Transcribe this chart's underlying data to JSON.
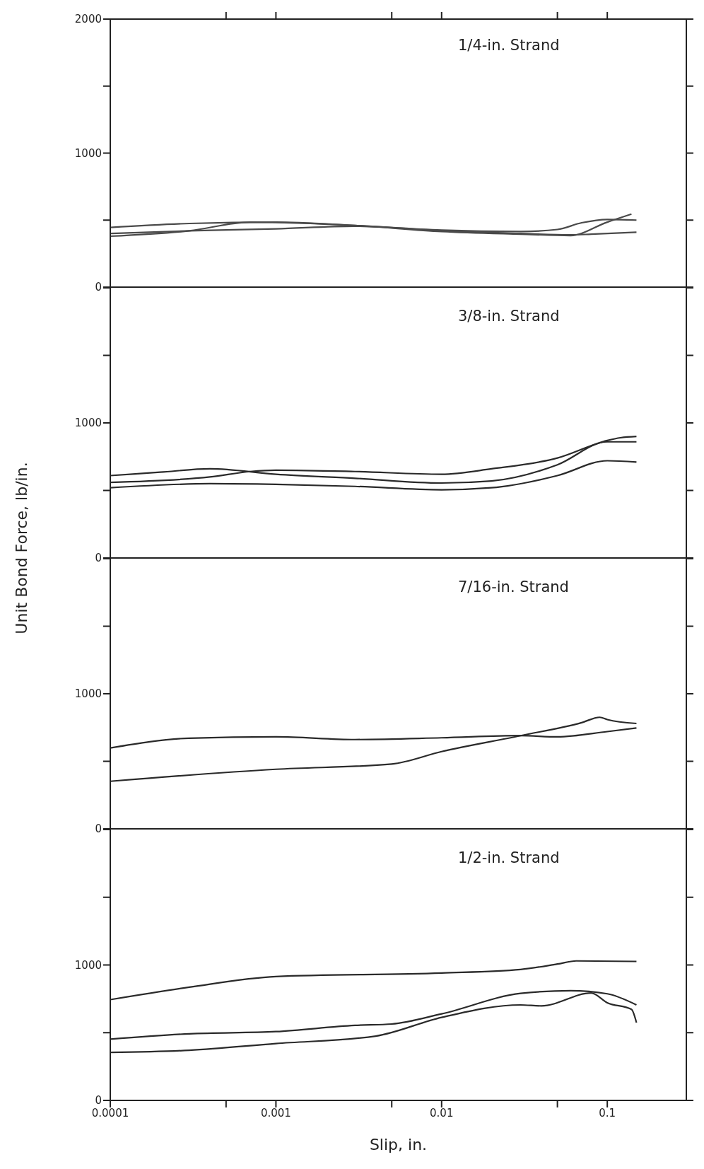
{
  "chart_data": [
    {
      "type": "line",
      "title": "1/4-in. Strand",
      "xlim": [
        0.0001,
        0.3
      ],
      "xticks": [
        {
          "value": 0.0005,
          "label": null
        },
        {
          "value": 0.001,
          "label": null
        },
        {
          "value": 0.005,
          "label": null
        },
        {
          "value": 0.01,
          "label": null
        },
        {
          "value": 0.05,
          "label": null
        },
        {
          "value": 0.1,
          "label": null
        }
      ],
      "log": "x",
      "ylim": [
        0,
        2000
      ],
      "yticks": [
        0,
        {
          "value": 500,
          "label": null
        },
        1000,
        {
          "value": 1500,
          "label": null
        },
        2000
      ],
      "tick_labels": "y",
      "series": [
        {
          "color": "#4a4a4a",
          "x": [
            0.0001,
            0.0003,
            0.001,
            0.003,
            0.01,
            0.03,
            0.05,
            0.07,
            0.1,
            0.15
          ],
          "values": [
            445,
            475,
            485,
            460,
            425,
            415,
            430,
            480,
            505,
            500
          ]
        },
        {
          "color": "#4a4a4a",
          "x": [
            0.0001,
            0.0003,
            0.0007,
            0.003,
            0.01,
            0.03,
            0.06,
            0.1,
            0.14
          ],
          "values": [
            380,
            420,
            485,
            460,
            415,
            395,
            385,
            485,
            545
          ]
        },
        {
          "color": "#4a4a4a",
          "x": [
            0.0001,
            0.0003,
            0.001,
            0.003,
            0.01,
            0.03,
            0.06,
            0.08,
            0.15
          ],
          "values": [
            400,
            420,
            435,
            455,
            420,
            400,
            390,
            395,
            410
          ]
        }
      ]
    },
    {
      "type": "line",
      "title": "3/8-in. Strand",
      "xlim": [
        0.0001,
        0.3
      ],
      "log": "x",
      "ylim": [
        0,
        2000
      ],
      "yticks": [
        0,
        {
          "value": 500,
          "label": null
        },
        1000,
        {
          "value": 1500,
          "label": null
        },
        {
          "value": 2000,
          "label": null
        }
      ],
      "tick_labels": "y",
      "series": [
        {
          "color": "#2a2a2a",
          "x": [
            0.0001,
            0.0002,
            0.0004,
            0.001,
            0.003,
            0.01,
            0.02,
            0.05,
            0.1,
            0.15
          ],
          "values": [
            610,
            635,
            660,
            620,
            590,
            555,
            570,
            690,
            860,
            860
          ]
        },
        {
          "color": "#2a2a2a",
          "x": [
            0.0001,
            0.0004,
            0.0007,
            0.001,
            0.003,
            0.01,
            0.02,
            0.05,
            0.1,
            0.12,
            0.15
          ],
          "values": [
            560,
            600,
            640,
            650,
            640,
            620,
            660,
            740,
            870,
            890,
            900
          ]
        },
        {
          "color": "#2a2a2a",
          "x": [
            0.0001,
            0.0004,
            0.001,
            0.003,
            0.01,
            0.02,
            0.05,
            0.1,
            0.15
          ],
          "values": [
            520,
            550,
            545,
            530,
            505,
            520,
            610,
            720,
            710
          ]
        }
      ]
    },
    {
      "type": "line",
      "title": "7/16-in. Strand",
      "ylabel": "Unit Bond Force, lb/in.",
      "xlim": [
        0.0001,
        0.3
      ],
      "log": "x",
      "ylim": [
        0,
        2000
      ],
      "yticks": [
        0,
        {
          "value": 500,
          "label": null
        },
        1000,
        {
          "value": 1500,
          "label": null
        },
        {
          "value": 2000,
          "label": null
        }
      ],
      "tick_labels": "y",
      "series": [
        {
          "color": "#2a2a2a",
          "x": [
            0.0001,
            0.0003,
            0.001,
            0.003,
            0.01,
            0.03,
            0.05,
            0.1,
            0.15
          ],
          "values": [
            599,
            671,
            681,
            661,
            674,
            690,
            681,
            720,
            747
          ]
        },
        {
          "color": "#2a2a2a",
          "x": [
            0.0001,
            0.001,
            0.005,
            0.01,
            0.03,
            0.07,
            0.09,
            0.1,
            0.15
          ],
          "values": [
            352,
            441,
            480,
            572,
            690,
            786,
            826,
            809,
            780
          ]
        }
      ]
    },
    {
      "type": "line",
      "title": "1/2-in. Strand",
      "xlabel": "Slip, in.",
      "xlim": [
        0.0001,
        0.3
      ],
      "xticks": [
        0.0001,
        {
          "value": 0.0005,
          "label": null
        },
        0.001,
        {
          "value": 0.005,
          "label": null
        },
        0.01,
        {
          "value": 0.05,
          "label": null
        },
        0.1
      ],
      "log": "x",
      "ylim": [
        0,
        2000
      ],
      "yticks": [
        0,
        {
          "value": 500,
          "label": null
        },
        1000,
        {
          "value": 1500,
          "label": null
        },
        {
          "value": 2000,
          "label": null
        }
      ],
      "series": [
        {
          "color": "#2a2a2a",
          "x": [
            0.0001,
            0.0003,
            0.001,
            0.01,
            0.03,
            0.05,
            0.065,
            0.15
          ],
          "values": [
            744,
            836,
            915,
            941,
            967,
            1007,
            1030,
            1026
          ]
        },
        {
          "color": "#2a2a2a",
          "x": [
            0.0001,
            0.0003,
            0.001,
            0.003,
            0.005,
            0.01,
            0.03,
            0.06,
            0.1,
            0.15
          ],
          "values": [
            452,
            492,
            508,
            554,
            564,
            639,
            790,
            810,
            787,
            705
          ]
        },
        {
          "color": "#2a2a2a",
          "x": [
            0.0001,
            0.0003,
            0.001,
            0.004,
            0.01,
            0.03,
            0.04,
            0.08,
            0.1,
            0.14,
            0.15
          ],
          "values": [
            354,
            370,
            420,
            475,
            613,
            705,
            698,
            793,
            721,
            672,
            574
          ]
        }
      ]
    }
  ]
}
